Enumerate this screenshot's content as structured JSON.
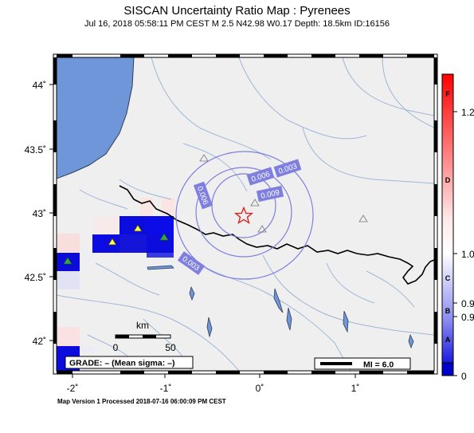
{
  "header": {
    "title": "SISCAN Uncertainty Ratio Map : Pyrenees",
    "subtitle": "Jul 16, 2018 05:58:11 PM CEST    M 2.5    N42.98 W0.17    Depth: 18.5km    ID:16156"
  },
  "footer": {
    "text": "Map Version 1 Processed 2018-07-16 06:00:09 PM CEST"
  },
  "axes": {
    "lon_labels": [
      "-2˚",
      "-1˚",
      "0˚",
      "1˚"
    ],
    "lat_labels": [
      "44˚",
      "43.5˚",
      "43˚",
      "42.5˚",
      "42˚"
    ]
  },
  "contours": {
    "color": "#7f7fdf",
    "labels": [
      "0.003",
      "0.006",
      "0.009",
      "0.006",
      "0.003"
    ]
  },
  "scale_bar": {
    "unit": "km",
    "ticks": [
      "0",
      "50"
    ]
  },
  "grade_box": {
    "text": "GRADE: – (Mean sigma: –)"
  },
  "mi_legend": {
    "text": "MI = 6.0"
  },
  "colorbar": {
    "letters": [
      "F",
      "D",
      "C",
      "B",
      "A"
    ],
    "values": [
      "1.2",
      "1.0",
      "0.9",
      "0.9",
      "0"
    ]
  },
  "epicenter": {
    "symbol": "star-icon",
    "color": "#dd2222"
  },
  "colors": {
    "sea": "#6f96d8",
    "land": "#efefef",
    "river": "#9fb6d8",
    "border": "#000000"
  }
}
